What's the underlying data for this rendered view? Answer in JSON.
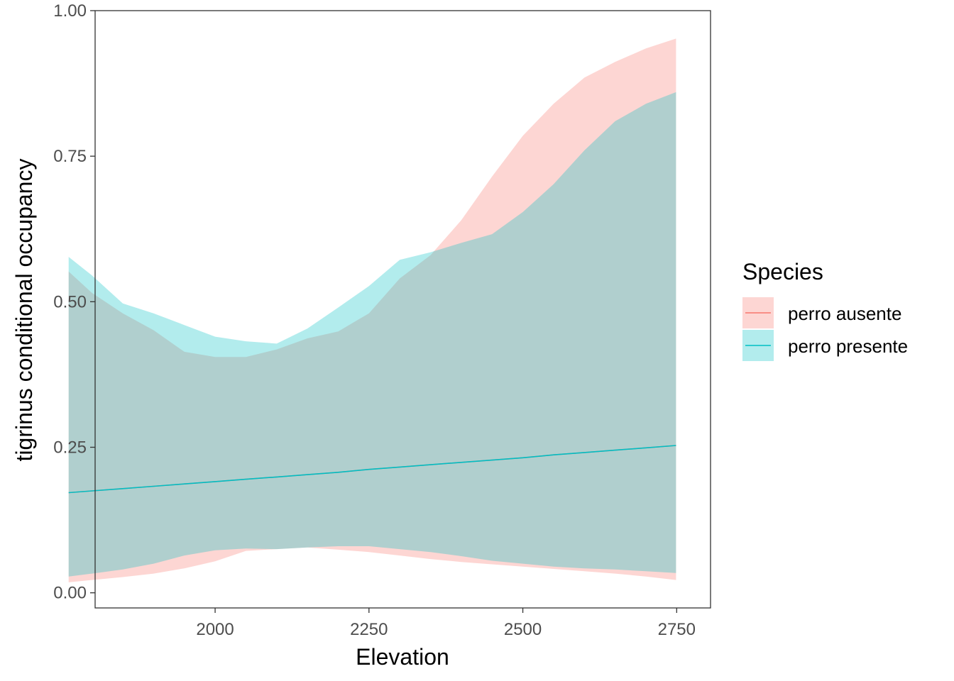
{
  "chart_data": {
    "type": "line",
    "xlabel": "Elevation",
    "ylabel": "tigrinus conditional occupancy",
    "xlim": [
      1805,
      2805
    ],
    "ylim": [
      -0.026,
      1.0
    ],
    "x_ticks": [
      2000,
      2250,
      2500,
      2750
    ],
    "y_ticks": [
      0.0,
      0.25,
      0.5,
      0.75,
      1.0
    ],
    "x_tick_labels": [
      "2000",
      "2250",
      "2500",
      "2750"
    ],
    "y_tick_labels": [
      "0.00",
      "0.25",
      "0.50",
      "0.75",
      "1.00"
    ],
    "grid": false,
    "legend": {
      "title": "Species",
      "position": "right"
    },
    "series": [
      {
        "name": "perro ausente",
        "color": "#F8766D",
        "ribbon_fill": "#F8766D",
        "x": [
          1762,
          1800,
          1850,
          1900,
          1950,
          2000,
          2050,
          2100,
          2150,
          2200,
          2250,
          2300,
          2350,
          2400,
          2450,
          2500,
          2550,
          2600,
          2650,
          2700,
          2749
        ],
        "fit": [
          0.172,
          0.175,
          0.179,
          0.183,
          0.187,
          0.191,
          0.195,
          0.199,
          0.203,
          0.207,
          0.212,
          0.216,
          0.22,
          0.224,
          0.228,
          0.232,
          0.237,
          0.241,
          0.245,
          0.249,
          0.253
        ],
        "lower": [
          0.018,
          0.022,
          0.027,
          0.033,
          0.042,
          0.054,
          0.072,
          0.075,
          0.078,
          0.074,
          0.07,
          0.064,
          0.058,
          0.053,
          0.049,
          0.045,
          0.041,
          0.037,
          0.033,
          0.028,
          0.022
        ],
        "upper": [
          0.552,
          0.515,
          0.48,
          0.451,
          0.414,
          0.405,
          0.405,
          0.418,
          0.437,
          0.449,
          0.48,
          0.54,
          0.58,
          0.64,
          0.715,
          0.785,
          0.84,
          0.885,
          0.912,
          0.935,
          0.952
        ]
      },
      {
        "name": "perro presente",
        "color": "#00BFC4",
        "ribbon_fill": "#00BFC4",
        "x": [
          1762,
          1800,
          1850,
          1900,
          1950,
          2000,
          2050,
          2100,
          2150,
          2200,
          2250,
          2300,
          2350,
          2400,
          2450,
          2500,
          2550,
          2600,
          2650,
          2700,
          2749
        ],
        "fit": [
          0.172,
          0.175,
          0.179,
          0.183,
          0.187,
          0.191,
          0.195,
          0.199,
          0.203,
          0.207,
          0.212,
          0.216,
          0.22,
          0.224,
          0.228,
          0.232,
          0.237,
          0.241,
          0.245,
          0.249,
          0.253
        ],
        "lower": [
          0.028,
          0.033,
          0.04,
          0.05,
          0.064,
          0.073,
          0.076,
          0.075,
          0.078,
          0.08,
          0.08,
          0.075,
          0.07,
          0.063,
          0.055,
          0.05,
          0.045,
          0.042,
          0.04,
          0.037,
          0.034
        ],
        "upper": [
          0.577,
          0.545,
          0.497,
          0.48,
          0.46,
          0.44,
          0.432,
          0.428,
          0.454,
          0.49,
          0.527,
          0.572,
          0.585,
          0.601,
          0.616,
          0.654,
          0.702,
          0.76,
          0.81,
          0.84,
          0.86
        ]
      }
    ]
  }
}
